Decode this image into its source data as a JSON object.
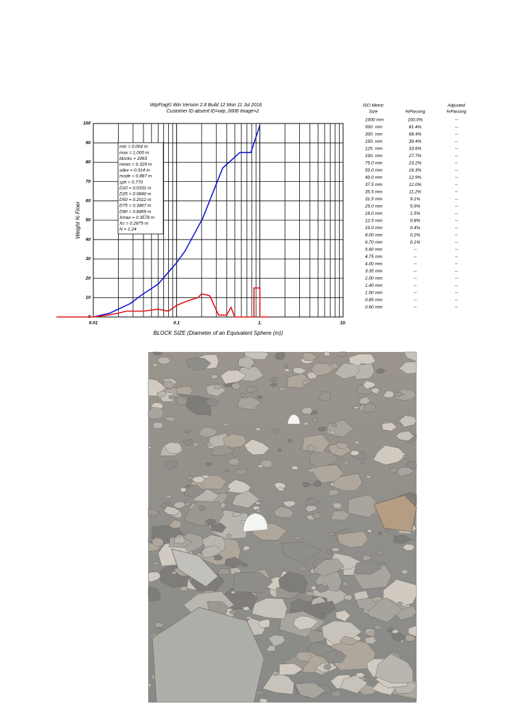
{
  "chart_data": {
    "type": "line",
    "title": "WipFrag© Win Version  2.8 Build 12 Mon 11 Jul 2016",
    "subtitle": "Customer ID absent  ID=wip_0006 Image=2",
    "x_label": "BLOCK SIZE (Diameter of an Equivalent Sphere (m))",
    "y_label": "Weight % Finer",
    "xscale": "log",
    "grid": true,
    "xlim": [
      0.01,
      10
    ],
    "xticks": [
      0.01,
      0.1,
      {
        "value": 1,
        "label": "1."
      },
      {
        "value": 10,
        "label": "10."
      }
    ],
    "ylim": [
      0,
      100
    ],
    "yticks": [
      0,
      10,
      20,
      30,
      40,
      50,
      60,
      70,
      80,
      90,
      100
    ],
    "series": [
      {
        "color": "#1010d0",
        "x": [
          0.01,
          0.0158,
          0.0279,
          0.037,
          0.06,
          0.1,
          0.126,
          0.206,
          0.358,
          0.575,
          0.78,
          1
        ],
        "values": [
          0,
          2,
          7,
          11,
          17,
          28,
          34,
          51,
          77,
          85,
          85,
          99
        ]
      },
      {
        "color": "#e01010",
        "x": [
          0.0036,
          0.01,
          0.015,
          0.02,
          0.025,
          0.04,
          0.06,
          0.08,
          0.1,
          0.13,
          0.18,
          0.2,
          0.25,
          0.32,
          0.4,
          0.45,
          0.5,
          0.85,
          0.85,
          1,
          1,
          1.3
        ],
        "values": [
          0,
          0,
          1,
          2,
          3,
          3,
          4,
          3,
          6,
          8,
          10,
          12,
          11,
          1,
          1,
          5,
          0,
          0,
          15,
          15,
          0,
          0
        ]
      }
    ],
    "annotation_lines": [
      "min   = 0.004 m",
      "max   = 1.000 m",
      "blocks = 2063",
      "mean  = 0.329 m",
      "sdev  = 0.314 m",
      "mode  = 0.887 m",
      "sph    = 0.770",
      "D10 = 0.0331 m",
      "D25 = 0.0840 m",
      "D50 = 0.2012 m",
      "D75 = 0.3467 m",
      "D90 = 0.8469 m",
      "Xmax = 0.3578 m",
      "Xc  = 0.2875 m",
      "N   = 1.24"
    ]
  },
  "table": {
    "columns": [
      [
        "ISO Metric",
        "Size"
      ],
      [
        "%Passing"
      ],
      [
        "Adjusted",
        "%Passing"
      ]
    ],
    "rows": [
      [
        "1000 mm",
        "100.0%",
        "--"
      ],
      [
        "500. mm",
        "81.4%",
        "--"
      ],
      [
        "300. mm",
        "68.4%",
        "--"
      ],
      [
        "150. mm",
        "39.4%",
        "--"
      ],
      [
        "125. mm",
        "33.6%",
        "--"
      ],
      [
        "100. mm",
        "27.7%",
        "--"
      ],
      [
        "75.0 mm",
        "23.2%",
        "--"
      ],
      [
        "50.0 mm",
        "16.3%",
        "--"
      ],
      [
        "40.0 mm",
        "12.9%",
        "--"
      ],
      [
        "37.5 mm",
        "12.0%",
        "--"
      ],
      [
        "35.5 mm",
        "11.2%",
        "--"
      ],
      [
        "31.5 mm",
        "9.1%",
        "--"
      ],
      [
        "25.0 mm",
        "5.9%",
        "--"
      ],
      [
        "16.0 mm",
        "1.5%",
        "--"
      ],
      [
        "12.5 mm",
        "0.8%",
        "--"
      ],
      [
        "10.0 mm",
        "0.4%",
        "--"
      ],
      [
        "8.00 mm",
        "0.2%",
        "--"
      ],
      [
        "6.70 mm",
        "0.1%",
        "--"
      ],
      [
        "5.60 mm",
        "--",
        "--"
      ],
      [
        "4.75 mm",
        "--",
        "--"
      ],
      [
        "4.00 mm",
        "--",
        "--"
      ],
      [
        "3.35 mm",
        "--",
        "--"
      ],
      [
        "2.00 mm",
        "--",
        "--"
      ],
      [
        "1.40 mm",
        "--",
        "--"
      ],
      [
        "1.00 mm",
        "--",
        "--"
      ],
      [
        "0.85 mm",
        "--",
        "--"
      ],
      [
        "0.60 mm",
        "--",
        "--"
      ]
    ]
  }
}
